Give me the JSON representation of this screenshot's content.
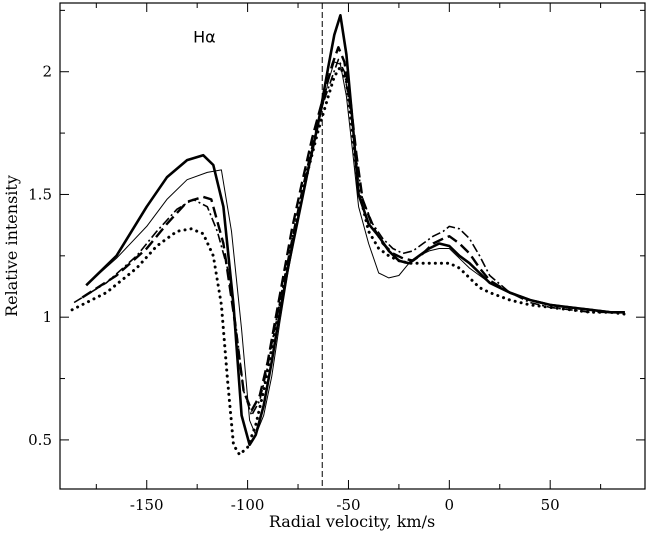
{
  "chart_data": {
    "type": "line",
    "xlabel": "Radial velocity, km/s",
    "ylabel": "Relative intensity",
    "xlim": [
      -193,
      97
    ],
    "ylim": [
      0.3,
      2.28
    ],
    "xticks": [
      -150,
      -100,
      -50,
      0,
      50
    ],
    "xtick_labels": [
      "-150",
      "-100",
      "-50",
      "0",
      "50"
    ],
    "yticks": [
      0.5,
      1,
      1.5,
      2
    ],
    "ytick_labels": [
      "0.5",
      "1",
      "1.5",
      "2"
    ],
    "grid": false,
    "annotations": [
      {
        "text": "Hα",
        "x": -127,
        "y": 2.12
      }
    ],
    "reference_line": {
      "x": -63,
      "style": "dashed"
    },
    "series": [
      {
        "style": "thick-solid",
        "x": [
          -180,
          -165,
          -150,
          -140,
          -130,
          -122,
          -117,
          -112,
          -107,
          -103,
          -99,
          -96,
          -92,
          -88,
          -84,
          -80,
          -75,
          -70,
          -65,
          -60,
          -57,
          -54,
          -51,
          -48,
          -45,
          -40,
          -35,
          -30,
          -25,
          -20,
          -15,
          -10,
          -5,
          0,
          5,
          10,
          15,
          20,
          30,
          40,
          50,
          60,
          70,
          80,
          87
        ],
        "y": [
          1.13,
          1.25,
          1.45,
          1.57,
          1.64,
          1.66,
          1.62,
          1.45,
          1.05,
          0.6,
          0.48,
          0.52,
          0.64,
          0.82,
          1.02,
          1.2,
          1.4,
          1.6,
          1.79,
          2.02,
          2.15,
          2.23,
          2.07,
          1.8,
          1.5,
          1.38,
          1.33,
          1.27,
          1.23,
          1.22,
          1.25,
          1.28,
          1.3,
          1.29,
          1.25,
          1.22,
          1.18,
          1.14,
          1.1,
          1.07,
          1.05,
          1.04,
          1.03,
          1.02,
          1.02
        ]
      },
      {
        "style": "thin-solid",
        "x": [
          -180,
          -165,
          -150,
          -140,
          -130,
          -120,
          -113,
          -108,
          -103,
          -99,
          -96,
          -92,
          -88,
          -84,
          -80,
          -75,
          -70,
          -65,
          -60,
          -57,
          -54,
          -51,
          -48,
          -45,
          -40,
          -35,
          -30,
          -25,
          -20,
          -15,
          -10,
          -5,
          0,
          5,
          10,
          15,
          20,
          30,
          40,
          50,
          60,
          70,
          80,
          87
        ],
        "y": [
          1.13,
          1.24,
          1.37,
          1.48,
          1.56,
          1.59,
          1.6,
          1.35,
          0.95,
          0.58,
          0.52,
          0.6,
          0.76,
          0.98,
          1.18,
          1.4,
          1.6,
          1.78,
          1.96,
          2.04,
          2.03,
          1.9,
          1.68,
          1.45,
          1.3,
          1.18,
          1.16,
          1.17,
          1.22,
          1.25,
          1.27,
          1.28,
          1.28,
          1.24,
          1.2,
          1.17,
          1.14,
          1.1,
          1.07,
          1.05,
          1.04,
          1.03,
          1.02,
          1.02
        ]
      },
      {
        "style": "dashed",
        "x": [
          -182,
          -165,
          -150,
          -140,
          -130,
          -122,
          -118,
          -112,
          -107,
          -102,
          -98,
          -94,
          -90,
          -86,
          -82,
          -78,
          -73,
          -68,
          -63,
          -58,
          -55,
          -52,
          -49,
          -46,
          -43,
          -38,
          -33,
          -28,
          -23,
          -18,
          -13,
          -8,
          -3,
          0,
          5,
          10,
          15,
          20,
          30,
          40,
          50,
          60,
          70,
          80,
          87
        ],
        "y": [
          1.08,
          1.17,
          1.28,
          1.38,
          1.47,
          1.49,
          1.48,
          1.3,
          1.02,
          0.7,
          0.62,
          0.68,
          0.82,
          1.0,
          1.18,
          1.36,
          1.55,
          1.73,
          1.88,
          2.03,
          2.1,
          2.04,
          1.88,
          1.66,
          1.48,
          1.37,
          1.3,
          1.26,
          1.24,
          1.23,
          1.26,
          1.3,
          1.32,
          1.33,
          1.3,
          1.26,
          1.2,
          1.15,
          1.1,
          1.07,
          1.05,
          1.04,
          1.03,
          1.02,
          1.02
        ]
      },
      {
        "style": "dash-dot",
        "x": [
          -186,
          -170,
          -155,
          -145,
          -135,
          -127,
          -120,
          -115,
          -110,
          -106,
          -102,
          -98,
          -94,
          -90,
          -86,
          -82,
          -78,
          -73,
          -68,
          -63,
          -58,
          -55,
          -52,
          -49,
          -46,
          -43,
          -38,
          -33,
          -28,
          -23,
          -18,
          -13,
          -8,
          -3,
          0,
          5,
          10,
          15,
          20,
          30,
          40,
          50,
          60,
          70,
          80,
          87
        ],
        "y": [
          1.06,
          1.14,
          1.25,
          1.35,
          1.44,
          1.48,
          1.45,
          1.35,
          1.2,
          0.98,
          0.7,
          0.6,
          0.66,
          0.8,
          0.98,
          1.15,
          1.32,
          1.52,
          1.7,
          1.86,
          1.98,
          2.05,
          2.0,
          1.84,
          1.64,
          1.48,
          1.38,
          1.32,
          1.28,
          1.26,
          1.27,
          1.3,
          1.33,
          1.35,
          1.37,
          1.36,
          1.32,
          1.25,
          1.17,
          1.1,
          1.06,
          1.04,
          1.03,
          1.02,
          1.02,
          1.02
        ]
      },
      {
        "style": "dotted",
        "x": [
          -187,
          -170,
          -155,
          -145,
          -135,
          -128,
          -122,
          -117,
          -113,
          -110,
          -107,
          -104,
          -100,
          -96,
          -92,
          -88,
          -84,
          -80,
          -75,
          -70,
          -65,
          -60,
          -57,
          -54,
          -51,
          -48,
          -45,
          -40,
          -35,
          -30,
          -25,
          -20,
          -15,
          -10,
          -5,
          0,
          5,
          10,
          15,
          20,
          30,
          40,
          50,
          60,
          70,
          80,
          89
        ],
        "y": [
          1.03,
          1.1,
          1.2,
          1.29,
          1.35,
          1.36,
          1.34,
          1.25,
          1.05,
          0.75,
          0.48,
          0.44,
          0.47,
          0.56,
          0.7,
          0.87,
          1.05,
          1.22,
          1.42,
          1.6,
          1.76,
          1.9,
          1.98,
          2.02,
          1.96,
          1.75,
          1.52,
          1.35,
          1.28,
          1.25,
          1.23,
          1.22,
          1.22,
          1.22,
          1.22,
          1.22,
          1.2,
          1.16,
          1.12,
          1.1,
          1.07,
          1.05,
          1.04,
          1.03,
          1.02,
          1.02,
          1.01
        ]
      }
    ]
  }
}
